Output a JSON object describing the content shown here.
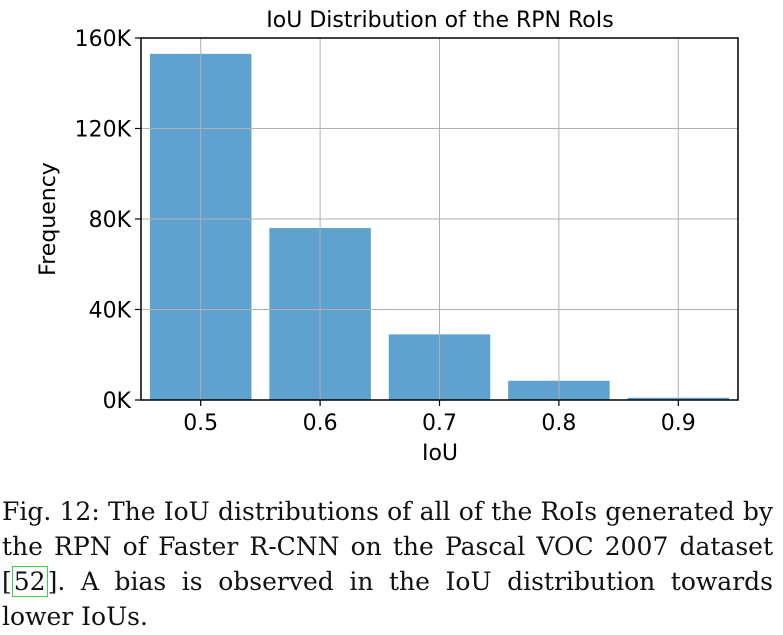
{
  "chart_data": {
    "type": "bar",
    "title": "IoU Distribution of the RPN RoIs",
    "xlabel": "IoU",
    "ylabel": "Frequency",
    "categories": [
      "0.5",
      "0.6",
      "0.7",
      "0.8",
      "0.9"
    ],
    "values": [
      153000,
      76000,
      29000,
      8500,
      1000
    ],
    "ylim": [
      0,
      160000
    ],
    "yticks": [
      0,
      40000,
      80000,
      120000,
      160000
    ],
    "ytick_labels": [
      "0K",
      "40K",
      "80K",
      "120K",
      "160K"
    ],
    "grid": true,
    "bar_color": "#5fa2d0"
  },
  "caption": {
    "prefix": "Fig. 12: The IoU distributions of all of the RoIs generated by the RPN of Faster R-CNN on the Pascal VOC 2007 dataset [",
    "cite": "52",
    "suffix": "]. A bias is observed in the IoU distribution towards lower IoUs."
  }
}
